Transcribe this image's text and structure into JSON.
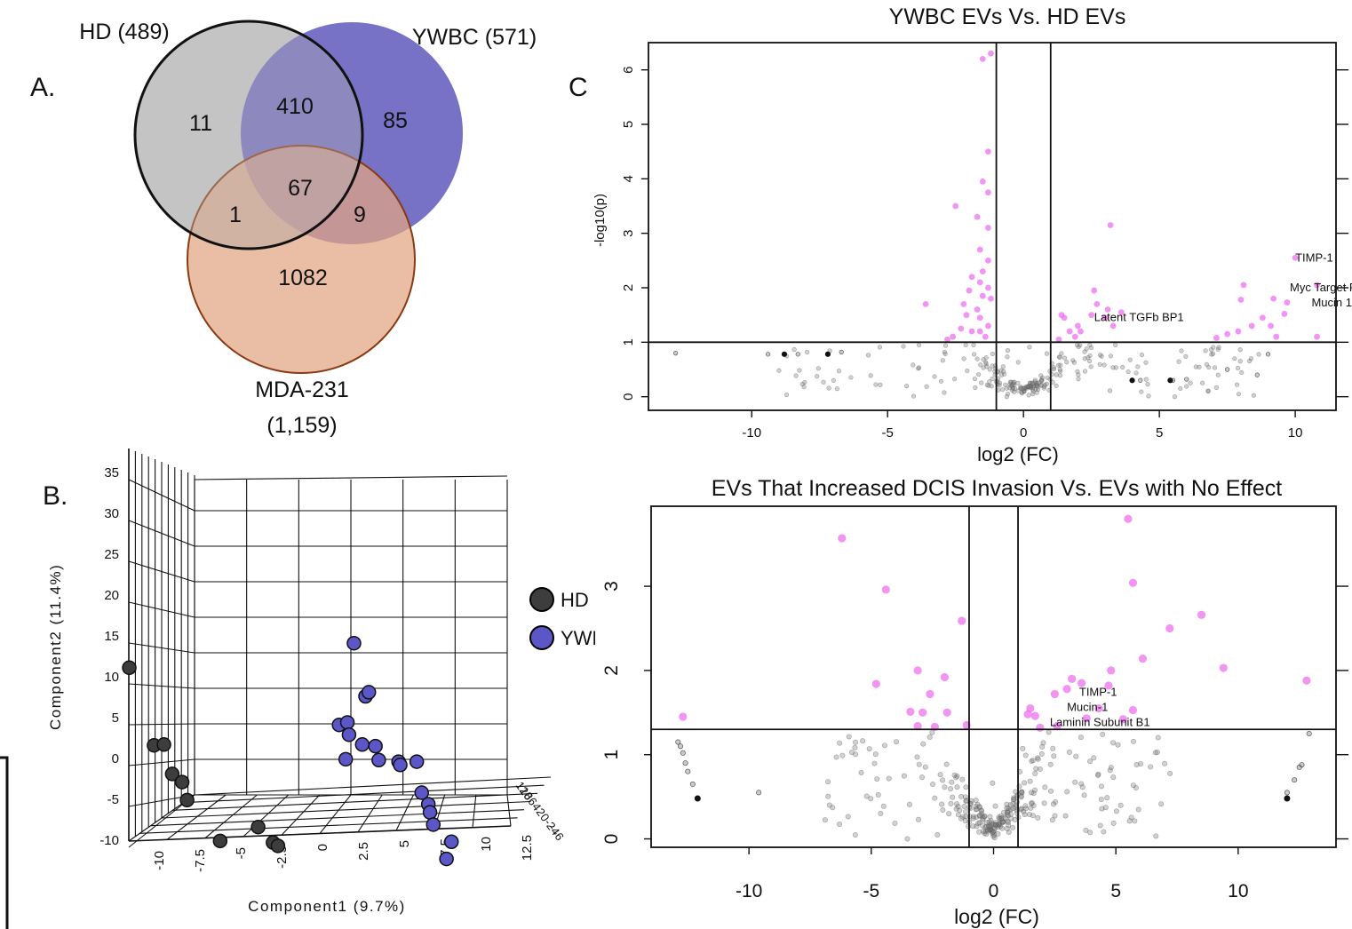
{
  "panels": {
    "a_letter": "A.",
    "b_letter": "B.",
    "c_letter": "C"
  },
  "colors": {
    "hd": "#c8c8c8",
    "ywbc": "#6b66c0",
    "mda": "#e2a482",
    "mda_edge": "#8a3a12",
    "sig": "#ee70ee",
    "ns": "#7a7a7a",
    "pca_hd": "#3d3d3d",
    "pca_ywbc": "#5b57c9"
  },
  "chart_data": [
    {
      "type": "venn",
      "sets": [
        {
          "label": "HD (489)"
        },
        {
          "label": "YWBC (571)"
        },
        {
          "label": "MDA-231",
          "sublabel": "(1,159)"
        }
      ],
      "regions": {
        "hd_only": "11",
        "hd_ywbc": "410",
        "ywbc_only": "85",
        "all_three": "67",
        "hd_mda": "1",
        "ywbc_mda": "9",
        "mda_only": "1082"
      }
    },
    {
      "type": "scatter",
      "title": "",
      "xlabel": "Component1 (9.7%)",
      "ylabel": "Component2 (11.4%)",
      "x_ticks": [
        "-10",
        "-7.5",
        "-5",
        "-2.5",
        "0",
        "2.5",
        "5",
        "7.5",
        "10",
        "12.5"
      ],
      "y_ticks": [
        "35",
        "30",
        "25",
        "20",
        "15",
        "10",
        "5",
        "0",
        "-5",
        "-10"
      ],
      "z_ticks": [
        "12",
        "10",
        "8",
        "6",
        "4",
        "2",
        "0",
        "-2",
        "-4",
        "-6"
      ],
      "legend": [
        "HD",
        "YWBC"
      ],
      "series": [
        {
          "name": "HD",
          "points": [
            [
              -11.8,
              11
            ],
            [
              -10.3,
              1.5
            ],
            [
              -9.7,
              1.6
            ],
            [
              -9.2,
              -2
            ],
            [
              -8.6,
              -3
            ],
            [
              -8.3,
              -5.2
            ],
            [
              -4,
              -8.5
            ],
            [
              -6.3,
              -10.2
            ],
            [
              -3.1,
              -10.4
            ],
            [
              -2.8,
              -10.8
            ]
          ]
        },
        {
          "name": "YWBC",
          "points": [
            [
              1.8,
              14
            ],
            [
              2.5,
              7.5
            ],
            [
              2.7,
              8
            ],
            [
              0.9,
              4
            ],
            [
              1.4,
              4.3
            ],
            [
              1.5,
              2.8
            ],
            [
              2.3,
              1.6
            ],
            [
              3.1,
              1.4
            ],
            [
              1.3,
              -0.2
            ],
            [
              3.3,
              -0.3
            ],
            [
              4.5,
              -0.5
            ],
            [
              4.6,
              -0.9
            ],
            [
              5.6,
              -0.5
            ],
            [
              5.9,
              -4.3
            ],
            [
              6.3,
              -5.7
            ],
            [
              6.4,
              -6.7
            ],
            [
              6.6,
              -8.2
            ],
            [
              7.7,
              -10.3
            ],
            [
              7.4,
              -12.4
            ]
          ]
        }
      ]
    },
    {
      "type": "scatter",
      "title": "YWBC EVs Vs. HD EVs",
      "xlabel": "log2 (FC)",
      "ylabel": "-log10(p)",
      "x_ticks": [
        "-10",
        "-5",
        "0",
        "5",
        "10"
      ],
      "y_ticks": [
        "0",
        "1",
        "2",
        "3",
        "4",
        "5",
        "6"
      ],
      "xlim": [
        -13.8,
        11.5
      ],
      "ylim": [
        -0.25,
        6.5
      ],
      "thresholds": {
        "fc": [
          -1,
          1
        ],
        "p": 1
      },
      "annotations": [
        {
          "text": "TIMP-1",
          "x": 10,
          "y": 2.55
        },
        {
          "text": "Myc Target Protein",
          "x": 9.8,
          "y": 2.0
        },
        {
          "text": "Mucin 1",
          "x": 10.6,
          "y": 1.72
        },
        {
          "text": "Latent TGFb BP1",
          "x": 2.6,
          "y": 1.45
        }
      ],
      "series": [
        {
          "values_sig": [
            [
              -1.2,
              6.3
            ],
            [
              -1.5,
              6.2
            ],
            [
              -1.3,
              4.5
            ],
            [
              -1.5,
              3.95
            ],
            [
              -1.3,
              3.75
            ],
            [
              -2.5,
              3.5
            ],
            [
              -1.7,
              3.3
            ],
            [
              -1.3,
              3.1
            ],
            [
              -1.6,
              2.7
            ],
            [
              -1.3,
              2.5
            ],
            [
              -1.5,
              2.3
            ],
            [
              -1.9,
              2.2
            ],
            [
              -1.6,
              2.1
            ],
            [
              -1.3,
              2.0
            ],
            [
              -2.0,
              1.95
            ],
            [
              -1.5,
              1.85
            ],
            [
              -1.2,
              1.8
            ],
            [
              -3.6,
              1.7
            ],
            [
              -2.2,
              1.7
            ],
            [
              -1.7,
              1.6
            ],
            [
              -2.1,
              1.5
            ],
            [
              -1.6,
              1.45
            ],
            [
              -1.3,
              1.3
            ],
            [
              -2.3,
              1.25
            ],
            [
              -1.9,
              1.2
            ],
            [
              -1.6,
              1.2
            ],
            [
              -2.6,
              1.1
            ],
            [
              -2.8,
              1.05
            ],
            [
              -1.4,
              1.1
            ],
            [
              3.2,
              3.15
            ],
            [
              1.4,
              1.5
            ],
            [
              1.5,
              1.45
            ],
            [
              2.5,
              1.5
            ],
            [
              3.0,
              1.45
            ],
            [
              2.0,
              1.3
            ],
            [
              1.7,
              1.2
            ],
            [
              2.6,
              1.95
            ],
            [
              2.7,
              1.7
            ],
            [
              3.1,
              1.6
            ],
            [
              2.1,
              1.2
            ],
            [
              1.9,
              1.1
            ],
            [
              3.3,
              1.3
            ],
            [
              1.3,
              1.05
            ],
            [
              10,
              2.55
            ],
            [
              10.8,
              2.05
            ],
            [
              8.1,
              2.05
            ],
            [
              9.2,
              1.8
            ],
            [
              9.7,
              1.73
            ],
            [
              8.0,
              1.78
            ],
            [
              9.6,
              1.52
            ],
            [
              8.8,
              1.45
            ],
            [
              9.1,
              1.3
            ],
            [
              8.4,
              1.3
            ],
            [
              7.9,
              1.2
            ],
            [
              9.3,
              1.1
            ],
            [
              10.8,
              1.1
            ],
            [
              7.5,
              1.15
            ],
            [
              7.1,
              1.08
            ],
            [
              3.6,
              1.55
            ]
          ]
        },
        {
          "values_ns_count": 260
        }
      ]
    },
    {
      "type": "scatter",
      "title": "EVs That Increased DCIS Invasion Vs. EVs with No Effect",
      "xlabel": "log2 (FC)",
      "ylabel": "",
      "x_ticks": [
        "-10",
        "-5",
        "0",
        "5",
        "10"
      ],
      "y_ticks": [
        "0",
        "1",
        "2",
        "3"
      ],
      "xlim": [
        -14,
        14
      ],
      "ylim": [
        -0.1,
        3.95
      ],
      "thresholds": {
        "fc": [
          -1,
          1
        ],
        "p": 1.3
      },
      "annotations": [
        {
          "text": "TIMP-1",
          "x": 3.5,
          "y": 1.74
        },
        {
          "text": "Mucin-1",
          "x": 3.0,
          "y": 1.56
        },
        {
          "text": "Laminin Subunit B1",
          "x": 2.3,
          "y": 1.38
        }
      ],
      "series": [
        {
          "values_sig": [
            [
              5.5,
              3.8
            ],
            [
              -6.2,
              3.57
            ],
            [
              5.7,
              3.04
            ],
            [
              -4.4,
              2.96
            ],
            [
              8.5,
              2.66
            ],
            [
              -1.3,
              2.59
            ],
            [
              7.2,
              2.5
            ],
            [
              6.1,
              2.14
            ],
            [
              9.4,
              2.03
            ],
            [
              -3.1,
              2.0
            ],
            [
              4.8,
              2.0
            ],
            [
              -2.0,
              1.92
            ],
            [
              12.8,
              1.88
            ],
            [
              -4.8,
              1.84
            ],
            [
              3.2,
              1.9
            ],
            [
              3.6,
              1.85
            ],
            [
              4.7,
              1.82
            ],
            [
              -2.6,
              1.72
            ],
            [
              2.5,
              1.72
            ],
            [
              3.0,
              1.78
            ],
            [
              4.3,
              1.55
            ],
            [
              5.7,
              1.53
            ],
            [
              1.5,
              1.55
            ],
            [
              -3.4,
              1.51
            ],
            [
              -2.9,
              1.5
            ],
            [
              -1.9,
              1.5
            ],
            [
              1.4,
              1.48
            ],
            [
              1.7,
              1.46
            ],
            [
              -12.7,
              1.45
            ],
            [
              3.8,
              1.43
            ],
            [
              5.3,
              1.42
            ],
            [
              -3.1,
              1.34
            ],
            [
              -2.4,
              1.33
            ],
            [
              -1.1,
              1.35
            ],
            [
              1.9,
              1.32
            ],
            [
              2.6,
              1.34
            ]
          ]
        },
        {
          "values_ns_count": 300
        }
      ]
    }
  ]
}
